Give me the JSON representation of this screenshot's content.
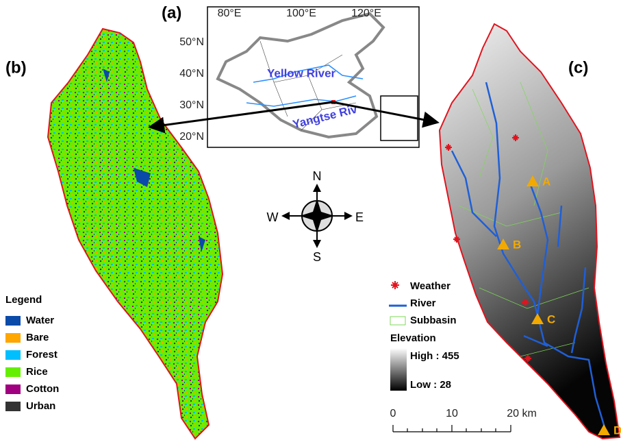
{
  "panels": {
    "a": {
      "label": "(a)",
      "lon_ticks": [
        "80°E",
        "100°E",
        "120°E"
      ],
      "lat_ticks": [
        "50°N",
        "40°N",
        "30°N",
        "20°N"
      ],
      "rivers": [
        "Yellow River",
        "Yangtse Riv"
      ]
    },
    "b": {
      "label": "(b)",
      "legend": {
        "title": "Legend",
        "items": [
          {
            "name": "Water",
            "color": "#0a4aa8"
          },
          {
            "name": "Bare",
            "color": "#ffa600"
          },
          {
            "name": "Forest",
            "color": "#00bfff"
          },
          {
            "name": "Rice",
            "color": "#66ee00"
          },
          {
            "name": "Cotton",
            "color": "#a0007f"
          },
          {
            "name": "Urban",
            "color": "#333333"
          }
        ]
      }
    },
    "c": {
      "label": "(c)",
      "stations": [
        "A",
        "B",
        "C",
        "D"
      ],
      "legend": {
        "weather": "Weather",
        "river": "River",
        "subbasin": "Subbasin",
        "elevation": "Elevation",
        "high": "High : 455",
        "low": "Low : 28"
      },
      "scale_bar": [
        "0",
        "10",
        "20 km"
      ]
    }
  },
  "compass": {
    "n": "N",
    "w": "W",
    "e": "E",
    "s": "S"
  }
}
